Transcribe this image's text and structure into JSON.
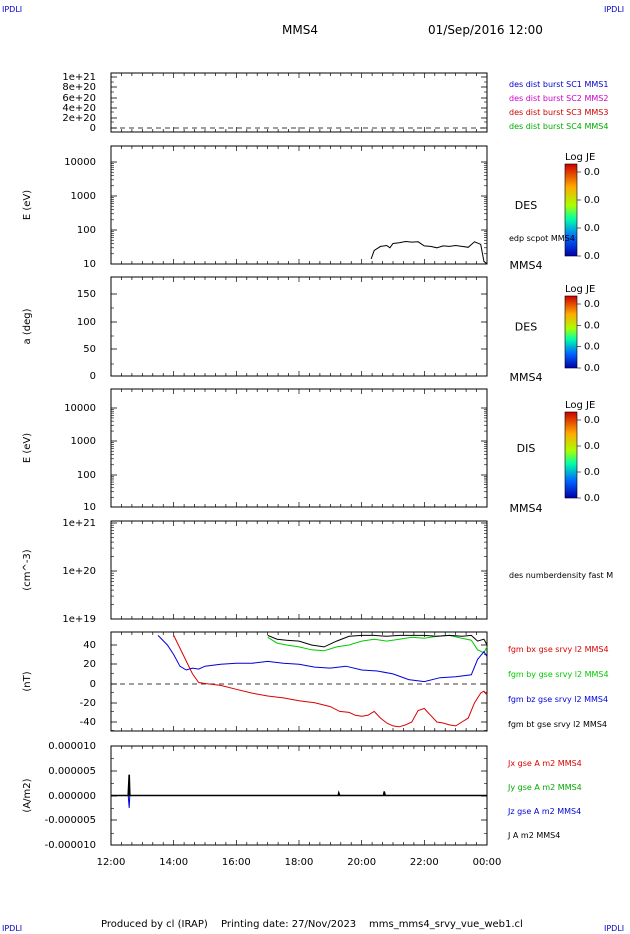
{
  "header": {
    "corner_label": "IPDLI",
    "spacecraft": "MMS4",
    "datetime": "01/Sep/2016 12:00"
  },
  "footer": {
    "produced_by": "Produced by cl (IRAP)",
    "printing_date": "Printing date: 27/Nov/2023",
    "filename": "mms_mms4_srvy_vue_web1.cl"
  },
  "x_axis": {
    "ticks": [
      "12:00",
      "14:00",
      "16:00",
      "18:00",
      "20:00",
      "22:00",
      "00:00"
    ],
    "range_hours": [
      12,
      24
    ]
  },
  "chart_data": [
    {
      "type": "line",
      "id": "dist",
      "ticks": [
        "1e+21",
        "8e+20",
        "6e+20",
        "4e+20",
        "2e+20",
        "0"
      ],
      "tick_values": [
        1e+21,
        8e+20,
        6e+20,
        4e+20,
        2e+20,
        0
      ],
      "ylim": [
        0,
        1.1e+21
      ],
      "legend": [
        {
          "label": "des dist burst SC1 MMS1",
          "color": "#0000cc"
        },
        {
          "label": "des dist burst SC2 MMS2",
          "color": "#cc00cc"
        },
        {
          "label": "des dist burst SC3 MMS3",
          "color": "#cc0000"
        },
        {
          "label": "des dist burst SC4 MMS4",
          "color": "#00aa00"
        }
      ],
      "zero_line": "dashed"
    },
    {
      "type": "line",
      "id": "des_energy",
      "ylabel": "E (eV)",
      "ticks": [
        "10000",
        "1000",
        "100",
        "10"
      ],
      "scale": "log",
      "ylim": [
        10,
        15000
      ],
      "side_label": "DES",
      "side_sublabel": "MMS4",
      "series_label": "edp scpot MMS4",
      "series": [
        {
          "name": "edp scpot MMS4",
          "color": "#000000",
          "x": [
            20.3,
            20.4,
            20.6,
            20.8,
            20.9,
            21.0,
            21.2,
            21.4,
            21.6,
            21.8,
            22.0,
            22.2,
            22.4,
            22.6,
            22.8,
            23.0,
            23.2,
            23.4,
            23.6,
            23.8,
            23.9,
            24.0
          ],
          "y": [
            14,
            25,
            33,
            35,
            30,
            40,
            42,
            46,
            44,
            45,
            34,
            33,
            30,
            34,
            33,
            35,
            33,
            31,
            45,
            38,
            12,
            10
          ]
        }
      ],
      "colorbar": {
        "title": "Log JE",
        "ticks": [
          "0.0",
          "0.0",
          "0.0",
          "0.0"
        ]
      }
    },
    {
      "type": "heatmap",
      "id": "des_pitch",
      "ylabel": "a (deg)",
      "ticks": [
        "150",
        "100",
        "50",
        "0"
      ],
      "tick_values": [
        150,
        100,
        50,
        0
      ],
      "ylim": [
        0,
        185
      ],
      "side_label": "DES",
      "side_sublabel": "MMS4",
      "colorbar": {
        "title": "Log JE",
        "ticks": [
          "0.0",
          "0.0",
          "0.0",
          "0.0"
        ]
      }
    },
    {
      "type": "heatmap",
      "id": "dis_energy",
      "ylabel": "E (eV)",
      "ticks": [
        "10000",
        "1000",
        "100",
        "10"
      ],
      "scale": "log",
      "ylim": [
        10,
        15000
      ],
      "side_label": "DIS",
      "side_sublabel": "MMS4",
      "colorbar": {
        "title": "Log JE",
        "ticks": [
          "0.0",
          "0.0",
          "0.0",
          "0.0"
        ]
      }
    },
    {
      "type": "line",
      "id": "density",
      "ylabel": "(cm^-3)",
      "ticks": [
        "1e+21",
        "1e+20",
        "1e+19"
      ],
      "scale": "log",
      "ylim": [
        1e+19,
        1e+21
      ],
      "series_label": "des numberdensity fast M"
    },
    {
      "type": "line",
      "id": "fgm",
      "ylabel": "(nT)",
      "ticks": [
        "40",
        "20",
        "0",
        "-20",
        "-40"
      ],
      "tick_values": [
        40,
        20,
        0,
        -20,
        -40
      ],
      "ylim": [
        -48,
        52
      ],
      "zero_line": "dashed",
      "series": [
        {
          "name": "fgm bx gse srvy l2 MMS4",
          "color": "#dd0000",
          "x": [
            14.0,
            14.3,
            14.6,
            14.8,
            15.0,
            15.5,
            16.0,
            16.5,
            17.0,
            17.5,
            18.0,
            18.5,
            19.0,
            19.3,
            19.6,
            19.8,
            20.0,
            20.2,
            20.4,
            20.6,
            20.8,
            21.0,
            21.2,
            21.4,
            21.6,
            21.8,
            22.0,
            22.2,
            22.4,
            22.6,
            22.8,
            23.0,
            23.2,
            23.4,
            23.6,
            23.8,
            23.9,
            24.0
          ],
          "y": [
            50,
            30,
            10,
            1,
            0,
            -2,
            -6,
            -10,
            -13,
            -15,
            -18,
            -20,
            -24,
            -29,
            -30,
            -33,
            -34,
            -33,
            -29,
            -36,
            -41,
            -44,
            -45,
            -43,
            -40,
            -28,
            -26,
            -33,
            -40,
            -41,
            -43,
            -44,
            -40,
            -36,
            -20,
            -10,
            -8,
            -12
          ]
        },
        {
          "name": "fgm by gse srvy l2 MMS4",
          "color": "#00cc00",
          "x": [
            17.0,
            17.3,
            17.6,
            18.0,
            18.4,
            18.8,
            19.2,
            19.6,
            20.0,
            20.4,
            20.8,
            21.2,
            21.6,
            22.0,
            22.4,
            22.8,
            23.2,
            23.5,
            23.7,
            23.9,
            24.0
          ],
          "y": [
            48,
            42,
            40,
            38,
            35,
            34,
            38,
            40,
            44,
            46,
            44,
            46,
            48,
            47,
            49,
            50,
            47,
            45,
            35,
            32,
            38
          ]
        },
        {
          "name": "fgm bz gse srvy l2 MMS4",
          "color": "#0000dd",
          "x": [
            13.5,
            13.8,
            14.0,
            14.2,
            14.4,
            14.6,
            14.8,
            15.0,
            15.5,
            16.0,
            16.5,
            17.0,
            17.5,
            18.0,
            18.5,
            19.0,
            19.5,
            20.0,
            20.5,
            21.0,
            21.5,
            22.0,
            22.5,
            23.0,
            23.5,
            23.7,
            23.9,
            24.0
          ],
          "y": [
            50,
            40,
            30,
            18,
            14,
            16,
            15,
            18,
            20,
            21,
            21,
            23,
            21,
            20,
            17,
            16,
            18,
            14,
            13,
            10,
            4,
            2,
            6,
            7,
            9,
            25,
            33,
            28
          ]
        },
        {
          "name": "fgm bt gse srvy l2 MMS4",
          "color": "#000000",
          "x": [
            17.0,
            17.3,
            17.6,
            18.0,
            18.4,
            18.8,
            19.2,
            19.6,
            20.0,
            20.4,
            20.8,
            21.2,
            21.6,
            22.0,
            22.4,
            22.8,
            23.2,
            23.5,
            23.7,
            23.9,
            24.0
          ],
          "y": [
            50,
            46,
            45,
            44,
            40,
            38,
            44,
            49,
            50,
            50,
            49,
            50,
            50,
            50,
            49,
            50,
            49,
            50,
            44,
            46,
            40
          ]
        }
      ]
    },
    {
      "type": "line",
      "id": "current",
      "ylabel": "(A/m2)",
      "ticks": [
        "0.000010",
        "0.000005",
        "0.000000",
        "-0.000005",
        "-0.000010"
      ],
      "tick_values": [
        1e-05,
        5e-06,
        0,
        -5e-06,
        -1e-05
      ],
      "ylim": [
        -1e-05,
        1e-05
      ],
      "series": [
        {
          "name": "Jx gse A m2 MMS4",
          "color": "#dd0000",
          "x": [
            12.0,
            24.0
          ],
          "y": [
            0,
            0
          ]
        },
        {
          "name": "Jy gse A m2 MMS4",
          "color": "#00aa00",
          "x": [
            12.0,
            24.0
          ],
          "y": [
            0,
            0
          ]
        },
        {
          "name": "Jz gse A m2 MMS4",
          "color": "#0000dd",
          "x": [
            12.0,
            12.55,
            12.58,
            12.6,
            24.0
          ],
          "y": [
            0,
            0,
            -2.5e-06,
            0,
            0
          ]
        },
        {
          "name": "J A m2 MMS4",
          "color": "#000000",
          "x": [
            12.0,
            12.55,
            12.58,
            12.6,
            19.25,
            19.27,
            19.3,
            20.7,
            20.72,
            20.75,
            24.0
          ],
          "y": [
            0,
            0,
            4.2e-06,
            0,
            0,
            5e-07,
            0,
            0,
            8e-07,
            0,
            0
          ]
        }
      ]
    }
  ]
}
